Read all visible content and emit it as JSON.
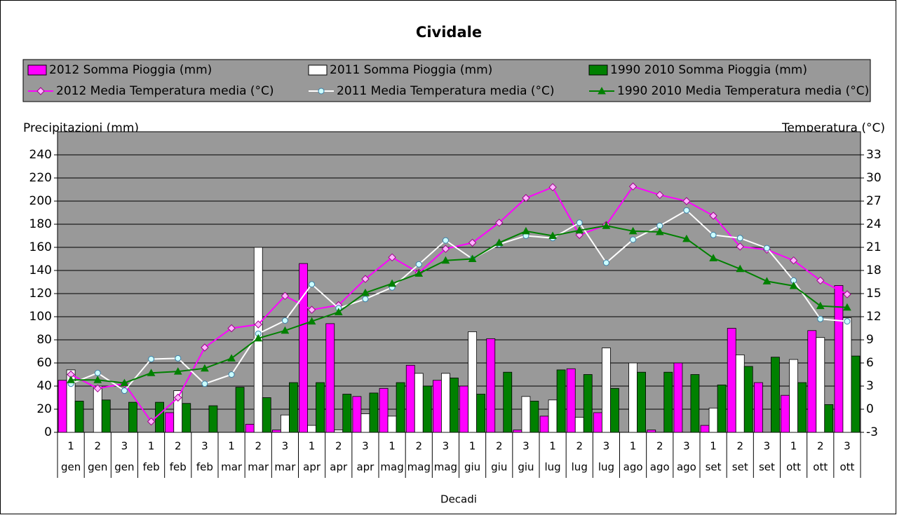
{
  "chart_data": {
    "type": "combo",
    "title": "Cividale",
    "y_label": "Precipitazioni (mm)",
    "y2_label": "Temperatura (°C)",
    "x_label": "Decadi",
    "categories": [
      "1",
      "2",
      "3",
      "1",
      "2",
      "3",
      "1",
      "2",
      "3",
      "1",
      "2",
      "3",
      "1",
      "2",
      "3",
      "1",
      "2",
      "3",
      "1",
      "2",
      "3",
      "1",
      "2",
      "3",
      "1",
      "2",
      "3",
      "1",
      "2",
      "3"
    ],
    "category_groups": [
      "gen",
      "gen",
      "gen",
      "feb",
      "feb",
      "feb",
      "mar",
      "mar",
      "mar",
      "apr",
      "apr",
      "apr",
      "mag",
      "mag",
      "mag",
      "giu",
      "giu",
      "giu",
      "lug",
      "lug",
      "lug",
      "ago",
      "ago",
      "ago",
      "set",
      "set",
      "set",
      "ott",
      "ott",
      "ott"
    ],
    "ylim": [
      0,
      260
    ],
    "yticks": [
      0,
      20,
      40,
      60,
      80,
      100,
      120,
      140,
      160,
      180,
      200,
      220,
      240
    ],
    "y2lim": [
      -3,
      36
    ],
    "y2ticks": [
      -3,
      0,
      3,
      6,
      9,
      12,
      15,
      18,
      21,
      24,
      27,
      30,
      33
    ],
    "grid": true,
    "plot_background": "#999999",
    "series": [
      {
        "name": "2012 Somma Pioggia (mm)",
        "type": "bar",
        "color": "#ff00ff",
        "values": [
          45,
          0,
          0,
          0,
          17,
          0,
          0,
          7,
          2,
          146,
          94,
          31,
          38,
          58,
          45,
          40,
          81,
          2,
          14,
          55,
          17,
          0,
          2,
          60,
          6,
          90,
          43,
          32,
          88,
          127
        ]
      },
      {
        "name": "2011 Somma Pioggia (mm)",
        "type": "bar",
        "color": "#ffffff",
        "values": [
          54,
          40,
          0,
          0,
          36,
          0,
          0,
          160,
          15,
          6,
          2,
          16,
          14,
          51,
          51,
          87,
          0,
          31,
          28,
          13,
          73,
          60,
          0,
          0,
          21,
          67,
          0,
          63,
          82,
          99
        ]
      },
      {
        "name": "1990 2010 Somma Pioggia (mm)",
        "type": "bar",
        "color": "#008000",
        "values": [
          27,
          28,
          26,
          26,
          25,
          23,
          39,
          30,
          43,
          43,
          33,
          34,
          43,
          40,
          47,
          33,
          52,
          27,
          54,
          50,
          38,
          52,
          52,
          50,
          41,
          57,
          65,
          43,
          24,
          66
        ]
      },
      {
        "name": "2012 Media Temperatura media (°C)",
        "type": "line",
        "axis": "y2",
        "color": "#ff00ff",
        "marker": "diamond",
        "values": [
          4.5,
          2.7,
          3.3,
          -1.6,
          1.5,
          8,
          10.5,
          11,
          14.7,
          12.9,
          13.5,
          16.9,
          19.7,
          17.7,
          20.8,
          21.6,
          24.2,
          27.4,
          28.8,
          22.6,
          23.9,
          28.9,
          27.8,
          27,
          25.1,
          21.1,
          20.7,
          19.3,
          16.7,
          14.9
        ]
      },
      {
        "name": "2011 Media Temperatura media (°C)",
        "type": "line",
        "axis": "y2",
        "color": "#ffffff",
        "marker": "circle",
        "values": [
          3.3,
          4.7,
          2.4,
          6.5,
          6.6,
          3.3,
          4.5,
          9.8,
          11.5,
          16.2,
          13.1,
          14.3,
          15.8,
          18.8,
          21.9,
          19.5,
          21.4,
          22.5,
          22.2,
          24.2,
          19,
          22,
          23.8,
          25.8,
          22.6,
          22.2,
          20.9,
          16.7,
          11.7,
          11.4
        ]
      },
      {
        "name": "1990 2010 Media Temperatura media (°C)",
        "type": "line",
        "axis": "y2",
        "color": "#008000",
        "marker": "triangle",
        "values": [
          3.8,
          3.8,
          3.4,
          4.7,
          4.9,
          5.3,
          6.6,
          9.2,
          10.2,
          11.4,
          12.6,
          15.1,
          16.3,
          17.6,
          19.3,
          19.5,
          21.6,
          23.1,
          22.5,
          23.2,
          23.8,
          23.1,
          23,
          22.1,
          19.6,
          18.2,
          16.6,
          16,
          13.4,
          13.2
        ]
      }
    ]
  }
}
